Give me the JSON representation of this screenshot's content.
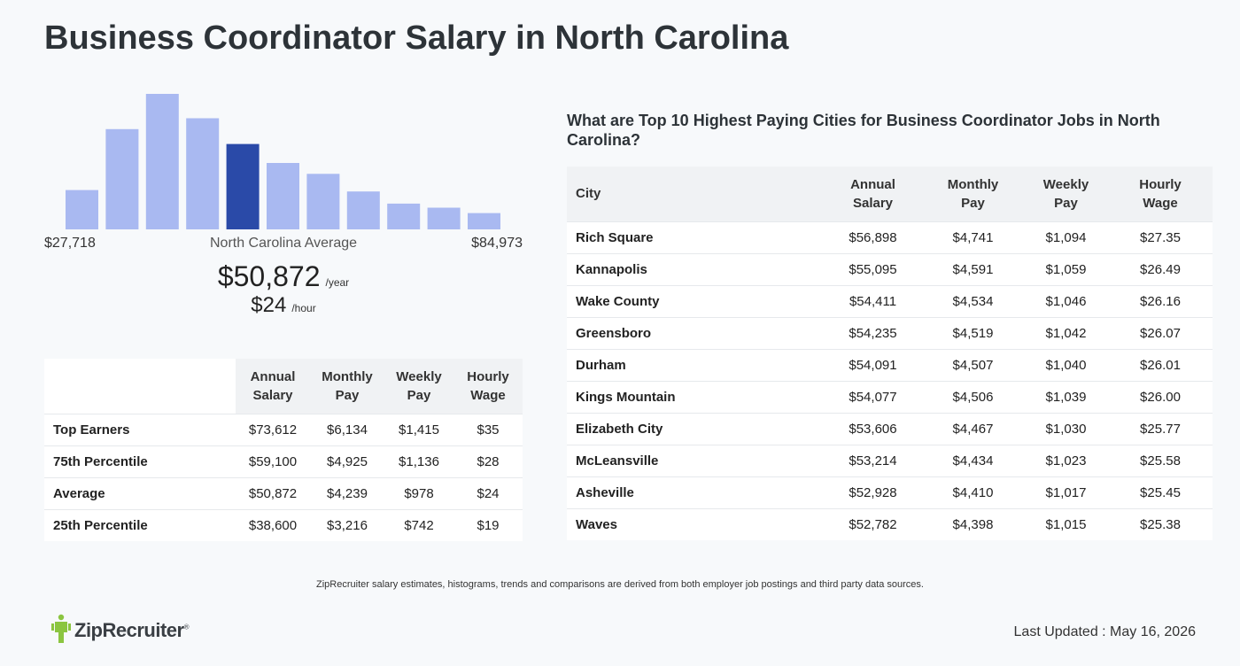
{
  "title": "Business Coordinator Salary in North Carolina",
  "histogram": {
    "min_label": "$27,718",
    "max_label": "$84,973",
    "mid_label": "North Carolina Average",
    "bar_color": "#a9b9f1",
    "highlight_color": "#2a4aa8",
    "highlight_index": 4,
    "bars": [
      0.29,
      0.74,
      1.0,
      0.82,
      0.63,
      0.49,
      0.41,
      0.28,
      0.19,
      0.16,
      0.12
    ]
  },
  "average": {
    "year_value": "$50,872",
    "year_unit": "/year",
    "hour_value": "$24",
    "hour_unit": "/hour"
  },
  "percentiles": {
    "headers": [
      "Annual Salary",
      "Monthly Pay",
      "Weekly Pay",
      "Hourly Wage"
    ],
    "rows": [
      {
        "label": "Top Earners",
        "values": [
          "$73,612",
          "$6,134",
          "$1,415",
          "$35"
        ]
      },
      {
        "label": "75th Percentile",
        "values": [
          "$59,100",
          "$4,925",
          "$1,136",
          "$28"
        ]
      },
      {
        "label": "Average",
        "values": [
          "$50,872",
          "$4,239",
          "$978",
          "$24"
        ]
      },
      {
        "label": "25th Percentile",
        "values": [
          "$38,600",
          "$3,216",
          "$742",
          "$19"
        ]
      }
    ]
  },
  "cities": {
    "heading": "What are Top 10 Highest Paying Cities for Business Coordinator Jobs in North Carolina?",
    "headers": [
      "City",
      "Annual Salary",
      "Monthly Pay",
      "Weekly Pay",
      "Hourly Wage"
    ],
    "rows": [
      {
        "city": "Rich Square",
        "values": [
          "$56,898",
          "$4,741",
          "$1,094",
          "$27.35"
        ]
      },
      {
        "city": "Kannapolis",
        "values": [
          "$55,095",
          "$4,591",
          "$1,059",
          "$26.49"
        ]
      },
      {
        "city": "Wake County",
        "values": [
          "$54,411",
          "$4,534",
          "$1,046",
          "$26.16"
        ]
      },
      {
        "city": "Greensboro",
        "values": [
          "$54,235",
          "$4,519",
          "$1,042",
          "$26.07"
        ]
      },
      {
        "city": "Durham",
        "values": [
          "$54,091",
          "$4,507",
          "$1,040",
          "$26.01"
        ]
      },
      {
        "city": "Kings Mountain",
        "values": [
          "$54,077",
          "$4,506",
          "$1,039",
          "$26.00"
        ]
      },
      {
        "city": "Elizabeth City",
        "values": [
          "$53,606",
          "$4,467",
          "$1,030",
          "$25.77"
        ]
      },
      {
        "city": "McLeansville",
        "values": [
          "$53,214",
          "$4,434",
          "$1,023",
          "$25.58"
        ]
      },
      {
        "city": "Asheville",
        "values": [
          "$52,928",
          "$4,410",
          "$1,017",
          "$25.45"
        ]
      },
      {
        "city": "Waves",
        "values": [
          "$52,782",
          "$4,398",
          "$1,015",
          "$25.38"
        ]
      }
    ]
  },
  "footnote": "ZipRecruiter salary estimates, histograms, trends and comparisons are derived from both employer job postings and third party data sources.",
  "logo": {
    "text": "ZipRecruiter",
    "icon": "zip-person-icon",
    "color": "#8bc540"
  },
  "last_updated": "Last Updated : May 16, 2026"
}
